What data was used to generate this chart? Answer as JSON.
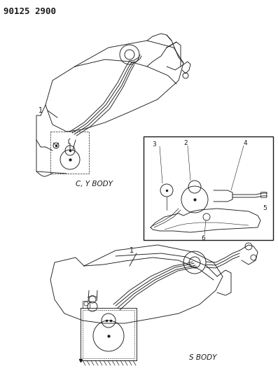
{
  "title_code": "90125 2900",
  "bg_color": "#ffffff",
  "line_color": "#1a1a1a",
  "label_cy_body": "C, Y BODY",
  "label_s_body": "S BODY",
  "title_fontsize": 9,
  "label_fontsize": 7.5,
  "number_fontsize": 7,
  "fig_width": 3.97,
  "fig_height": 5.33,
  "dpi": 100
}
